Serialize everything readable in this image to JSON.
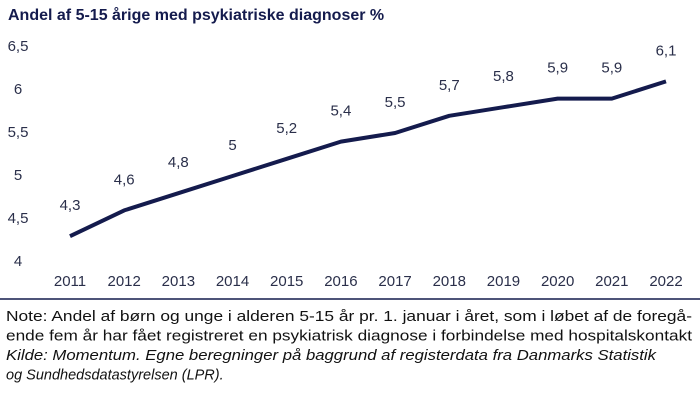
{
  "chart_data": {
    "type": "line",
    "title": "Andel af 5-15 årige med psykiatriske diagnoser %",
    "categories": [
      "2011",
      "2012",
      "2013",
      "2014",
      "2015",
      "2016",
      "2017",
      "2018",
      "2019",
      "2020",
      "2021",
      "2022"
    ],
    "values": [
      4.3,
      4.6,
      4.8,
      5,
      5.2,
      5.4,
      5.5,
      5.7,
      5.8,
      5.9,
      5.9,
      6.1
    ],
    "value_labels": [
      "4,3",
      "4,6",
      "4,8",
      "5",
      "5,2",
      "5,4",
      "5,5",
      "5,7",
      "5,8",
      "5,9",
      "5,9",
      "6,1"
    ],
    "color": "#141b4d",
    "ylim": [
      4,
      6.5
    ],
    "yticks": [
      4,
      {
        "value": 4.5,
        "label": "4,5"
      },
      5,
      {
        "value": 5.5,
        "label": "5,5"
      },
      6,
      {
        "value": 6.5,
        "label": "6,5"
      }
    ],
    "grid": false,
    "note": [
      "Note: Andel af børn og unge i alderen 5-15 år pr. 1. januar i året, som i løbet af de foregå-",
      "ende fem år har fået registreret en psykiatrisk diagnose i forbindelse med hospitalskontakt"
    ],
    "source": [
      "Kilde: Momentum. Egne beregninger på baggrund af registerdata fra Danmarks Statistik",
      "og Sundhedsdatastyrelsen (LPR)."
    ]
  }
}
